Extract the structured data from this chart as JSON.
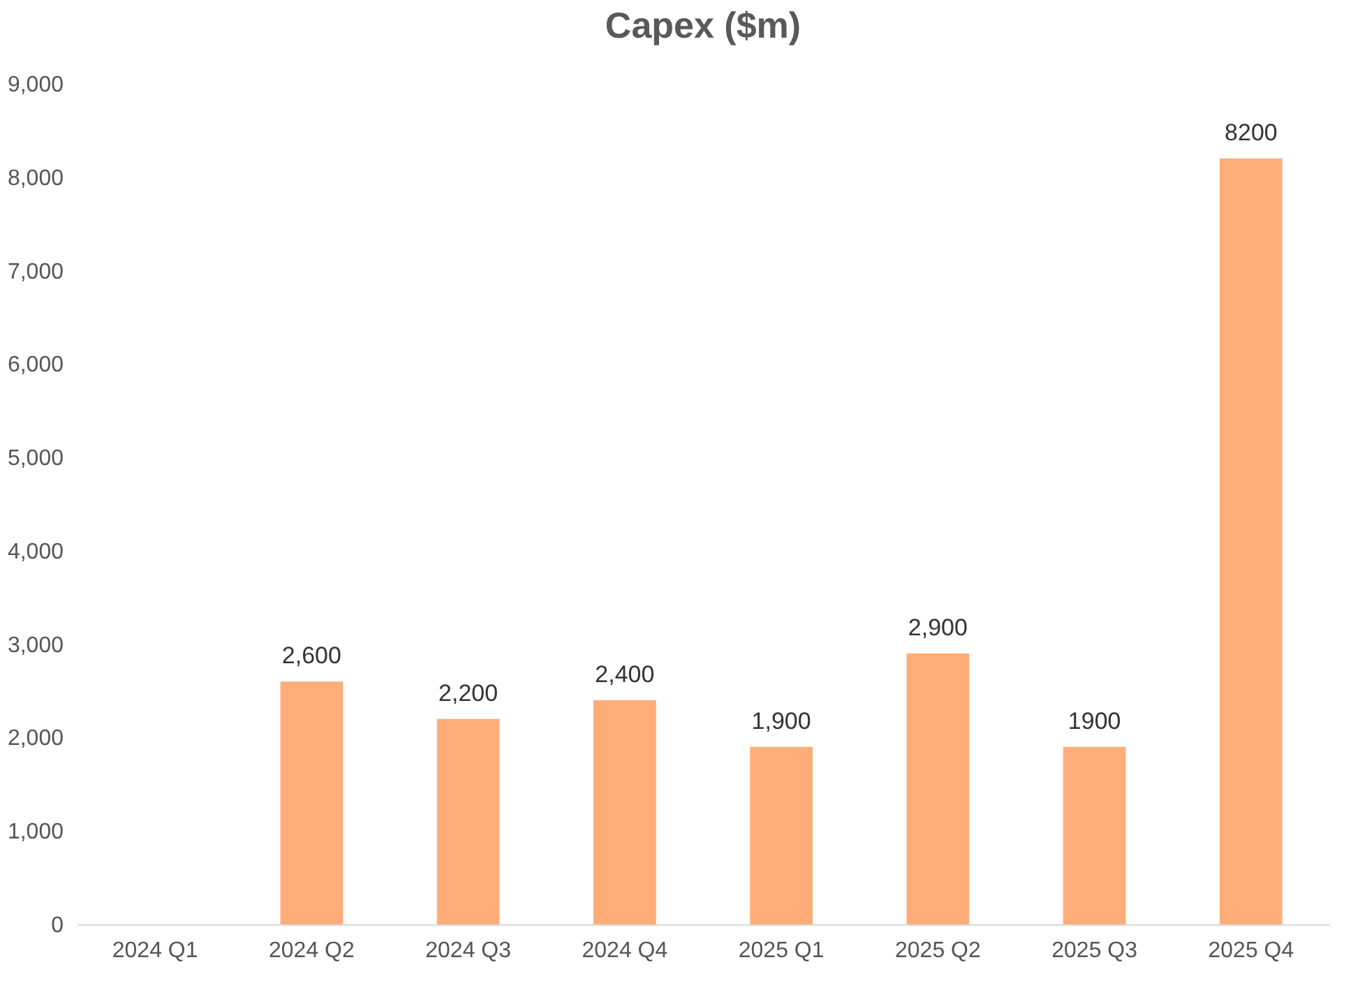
{
  "chart_data": {
    "type": "bar",
    "title": "Capex ($m)",
    "categories": [
      "2024 Q1",
      "2024 Q2",
      "2024 Q3",
      "2024 Q4",
      "2025 Q1",
      "2025 Q2",
      "2025 Q3",
      "2025 Q4"
    ],
    "values": [
      null,
      2600,
      2200,
      2400,
      1900,
      2900,
      1900,
      8200
    ],
    "value_labels": [
      null,
      "2,600",
      "2,200",
      "2,400",
      "1,900",
      "2,900",
      "1900",
      "8200"
    ],
    "color": "#ffad78",
    "ylim": [
      0,
      9000
    ],
    "yticks": [
      0,
      {
        "value": 1000,
        "label": "1,000"
      },
      {
        "value": 2000,
        "label": "2,000"
      },
      {
        "value": 3000,
        "label": "3,000"
      },
      {
        "value": 4000,
        "label": "4,000"
      },
      {
        "value": 5000,
        "label": "5,000"
      },
      {
        "value": 6000,
        "label": "6,000"
      },
      {
        "value": 7000,
        "label": "7,000"
      },
      {
        "value": 8000,
        "label": "8,000"
      },
      {
        "value": 9000,
        "label": "9,000"
      }
    ],
    "grid": false
  }
}
